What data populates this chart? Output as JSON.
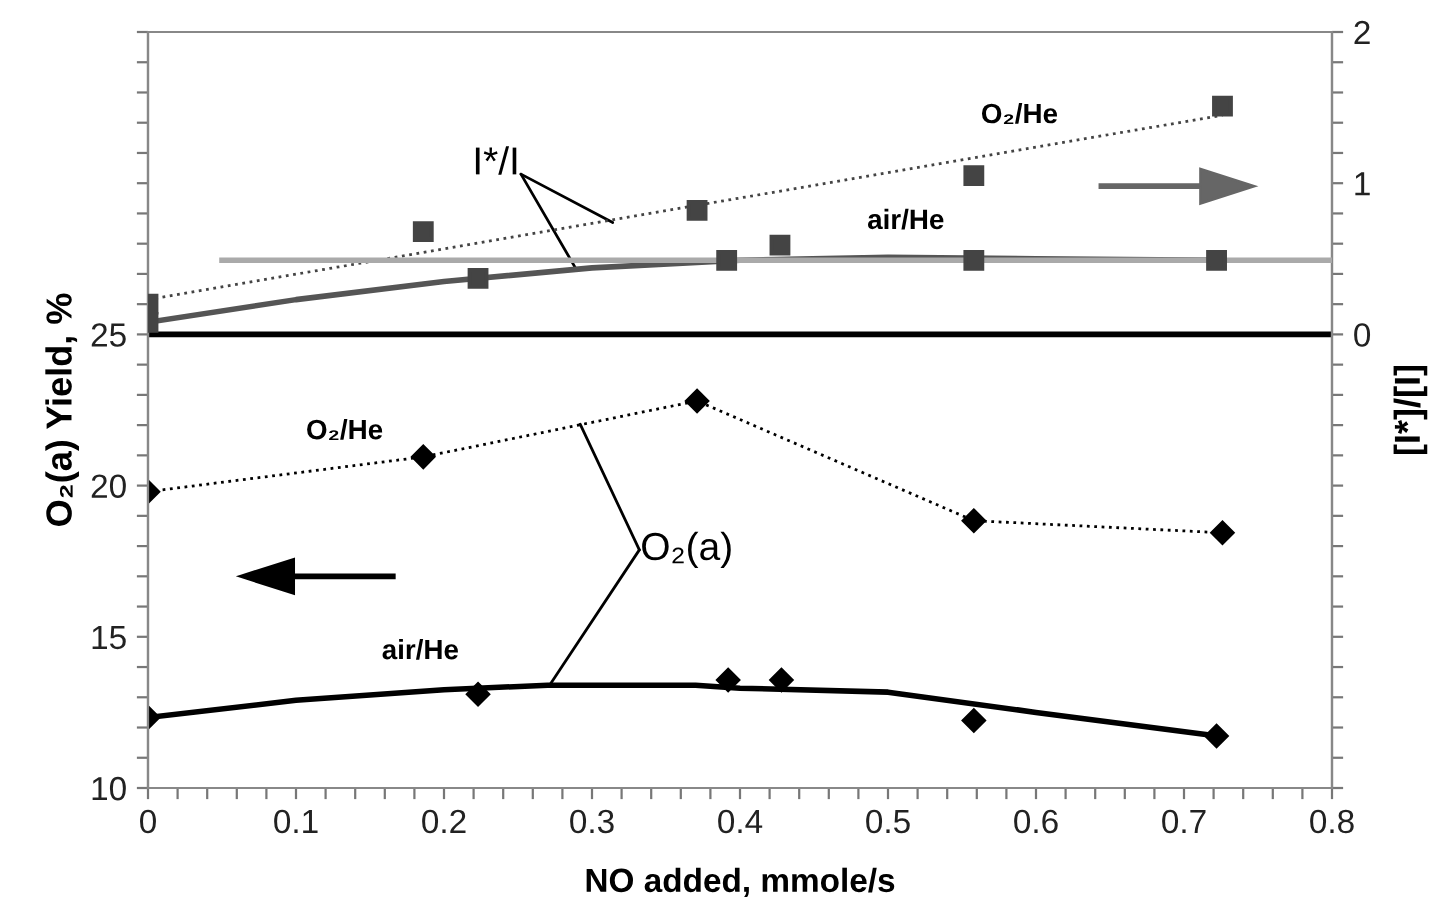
{
  "chart_data": {
    "type": "line",
    "xlabel": "NO added, mmole/s",
    "ylabel": "O₂(a) Yield, %",
    "y2label": "[I*]/[I]",
    "xlim": [
      0,
      0.8
    ],
    "ylim": [
      10,
      35
    ],
    "y2lim": [
      -3,
      2
    ],
    "xticks": [
      0,
      {
        "value": 0.02,
        "label": null
      },
      {
        "value": 0.04,
        "label": null
      },
      {
        "value": 0.06,
        "label": null
      },
      {
        "value": 0.08,
        "label": null
      },
      0.1,
      {
        "value": 0.12,
        "label": null
      },
      {
        "value": 0.14,
        "label": null
      },
      {
        "value": 0.16,
        "label": null
      },
      {
        "value": 0.18,
        "label": null
      },
      0.2,
      {
        "value": 0.22,
        "label": null
      },
      {
        "value": 0.24,
        "label": null
      },
      {
        "value": 0.26,
        "label": null
      },
      {
        "value": 0.28,
        "label": null
      },
      0.3,
      {
        "value": 0.32,
        "label": null
      },
      {
        "value": 0.34,
        "label": null
      },
      {
        "value": 0.36,
        "label": null
      },
      {
        "value": 0.38,
        "label": null
      },
      0.4,
      {
        "value": 0.42,
        "label": null
      },
      {
        "value": 0.44,
        "label": null
      },
      {
        "value": 0.46,
        "label": null
      },
      {
        "value": 0.48,
        "label": null
      },
      0.5,
      {
        "value": 0.52,
        "label": null
      },
      {
        "value": 0.54,
        "label": null
      },
      {
        "value": 0.56,
        "label": null
      },
      {
        "value": 0.58,
        "label": null
      },
      0.6,
      {
        "value": 0.62,
        "label": null
      },
      {
        "value": 0.64,
        "label": null
      },
      {
        "value": 0.66,
        "label": null
      },
      {
        "value": 0.68,
        "label": null
      },
      0.7,
      {
        "value": 0.72,
        "label": null
      },
      {
        "value": 0.74,
        "label": null
      },
      {
        "value": 0.76,
        "label": null
      },
      {
        "value": 0.78,
        "label": null
      },
      0.8
    ],
    "yticks": [
      10,
      {
        "value": 11,
        "label": null
      },
      {
        "value": 12,
        "label": null
      },
      {
        "value": 13,
        "label": null
      },
      {
        "value": 14,
        "label": null
      },
      15,
      {
        "value": 16,
        "label": null
      },
      {
        "value": 17,
        "label": null
      },
      {
        "value": 18,
        "label": null
      },
      {
        "value": 19,
        "label": null
      },
      20,
      {
        "value": 21,
        "label": null
      },
      {
        "value": 22,
        "label": null
      },
      {
        "value": 23,
        "label": null
      },
      {
        "value": 24,
        "label": null
      },
      25,
      {
        "value": 26,
        "label": null
      },
      {
        "value": 27,
        "label": null
      },
      {
        "value": 28,
        "label": null
      },
      {
        "value": 29,
        "label": null
      },
      {
        "value": 30,
        "label": null
      },
      {
        "value": 31,
        "label": null
      },
      {
        "value": 32,
        "label": null
      },
      {
        "value": 33,
        "label": null
      },
      {
        "value": 34,
        "label": null
      },
      {
        "value": 35,
        "label": null
      }
    ],
    "y2ticks": [
      {
        "value": -3,
        "label": null
      },
      {
        "value": -2.8,
        "label": null
      },
      {
        "value": -2.6,
        "label": null
      },
      {
        "value": -2.4,
        "label": null
      },
      {
        "value": -2.2,
        "label": null
      },
      {
        "value": -2,
        "label": null
      },
      {
        "value": -1.8,
        "label": null
      },
      {
        "value": -1.6,
        "label": null
      },
      {
        "value": -1.4,
        "label": null
      },
      {
        "value": -1.2,
        "label": null
      },
      {
        "value": -1,
        "label": null
      },
      {
        "value": -0.8,
        "label": null
      },
      {
        "value": -0.6,
        "label": null
      },
      {
        "value": -0.4,
        "label": null
      },
      {
        "value": -0.2,
        "label": null
      },
      0,
      {
        "value": 0.2,
        "label": null
      },
      {
        "value": 0.4,
        "label": null
      },
      {
        "value": 0.6,
        "label": null
      },
      {
        "value": 0.8,
        "label": null
      },
      1,
      {
        "value": 1.2,
        "label": null
      },
      {
        "value": 1.4,
        "label": null
      },
      {
        "value": 1.6,
        "label": null
      },
      {
        "value": 1.8,
        "label": null
      },
      2
    ],
    "series": [
      {
        "axis": "y",
        "color": "#000000",
        "marker": "diamond",
        "line_style": "dotted",
        "x": [
          0,
          0.186,
          0.371,
          0.558,
          0.726
        ],
        "values": [
          19.8,
          20.95,
          22.8,
          18.84,
          18.44
        ]
      },
      {
        "type": "scatter",
        "axis": "y",
        "color": "#000000",
        "marker": "diamond",
        "x": [
          0,
          0.223,
          0.392,
          0.428,
          0.558,
          0.722
        ],
        "values": [
          12.33,
          13.1,
          13.57,
          13.57,
          12.23,
          11.72
        ]
      },
      {
        "axis": "y",
        "color": "#000000",
        "marker": "none",
        "line_style": "solid",
        "x": [
          0,
          0.1,
          0.2,
          0.27,
          0.37,
          0.4,
          0.5,
          0.6,
          0.722
        ],
        "values": [
          12.33,
          12.9,
          13.25,
          13.4,
          13.4,
          13.3,
          13.17,
          12.5,
          11.72
        ]
      },
      {
        "type": "scatter",
        "axis": "y2",
        "color": "#444444",
        "marker": "square",
        "x": [
          0,
          0.186,
          0.371,
          0.558,
          0.726
        ],
        "values": [
          0.2,
          0.68,
          0.82,
          1.05,
          1.51
        ]
      },
      {
        "axis": "y2",
        "color": "#444444",
        "marker": "none",
        "line_style": "dotted",
        "x": [
          0,
          0.726
        ],
        "values": [
          0.23,
          1.45
        ]
      },
      {
        "type": "scatter",
        "axis": "y2",
        "color": "#444444",
        "marker": "square",
        "x": [
          0,
          0.223,
          0.391,
          0.427,
          0.558,
          0.722
        ],
        "values": [
          0.08,
          0.37,
          0.49,
          0.59,
          0.49,
          0.49
        ]
      },
      {
        "axis": "y2",
        "color": "#555555",
        "marker": "none",
        "line_style": "solid",
        "x": [
          0,
          0.1,
          0.2,
          0.3,
          0.4,
          0.5,
          0.6,
          0.722
        ],
        "values": [
          0.08,
          0.23,
          0.35,
          0.44,
          0.49,
          0.51,
          0.5,
          0.49
        ]
      },
      {
        "axis": "y2",
        "color": "#aaaaaa",
        "marker": "none",
        "line_style": "solid",
        "x": [
          0.05,
          0.8
        ],
        "values": [
          0.49,
          0.49
        ]
      }
    ],
    "ref_lines": [
      {
        "axis": "y",
        "value": 25,
        "color": "#000000"
      }
    ],
    "annotations": [
      {
        "text": "I*/I",
        "x": 0.314,
        "y": 28.7
      },
      "O₂/He",
      "air/He",
      "O₂/He",
      "air/He",
      {
        "text": "O₂(a)",
        "x": 0.292,
        "y": 22.03
      }
    ],
    "grid": false
  }
}
